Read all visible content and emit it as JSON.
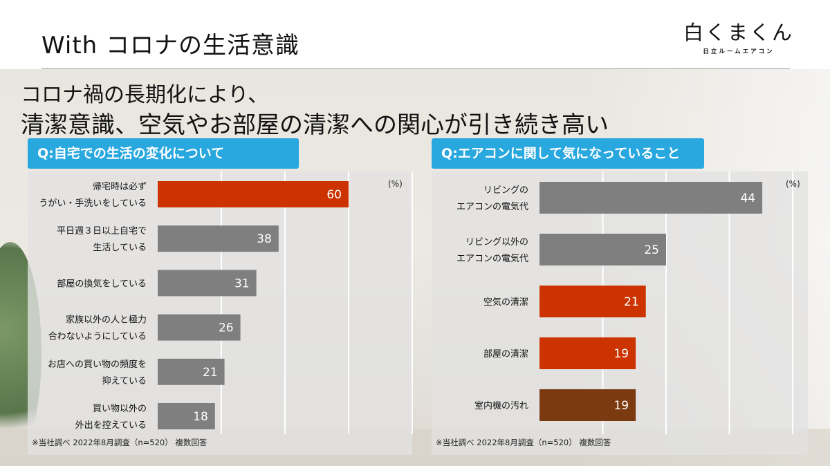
{
  "slide": {
    "title": "With コロナの生活意識",
    "brand_logo": "白くまくん",
    "brand_sub": "日立ルームエアコン",
    "headline_line1": "コロナ禍の長期化により、",
    "headline_line2": "清潔意識、空気やお部屋の清潔への関心が引き続き高い"
  },
  "colors": {
    "highlight": "#cc3300",
    "neutral": "#7f7f7f",
    "dark": "#7b3a10",
    "label_blue": "#29a8e0"
  },
  "chart_data": [
    {
      "type": "bar",
      "orientation": "horizontal",
      "title": "Q:自宅での生活の変化について",
      "unit": "(%)",
      "note": "※当社調べ 2022年8月調査（n=520） 複数回答",
      "categories": [
        [
          "帰宅時は必ず",
          "うがい・手洗いをしている"
        ],
        [
          "平日週３日以上自宅で",
          "生活している"
        ],
        [
          "部屋の換気をしている"
        ],
        [
          "家族以外の人と極力",
          "合わないようにしている"
        ],
        [
          "お店への買い物の頻度を",
          "抑えている"
        ],
        [
          "買い物以外の",
          "外出を控えている"
        ]
      ],
      "values": [
        60,
        38,
        31,
        26,
        21,
        18
      ],
      "bar_colors": [
        "#cc3300",
        "#7f7f7f",
        "#7f7f7f",
        "#7f7f7f",
        "#7f7f7f",
        "#7f7f7f"
      ],
      "xlim": [
        0,
        80
      ],
      "grid": true
    },
    {
      "type": "bar",
      "orientation": "horizontal",
      "title": "Q:エアコンに関して気になっていること",
      "unit": "(%)",
      "note": "※当社調べ 2022年8月調査（n=520） 複数回答",
      "categories": [
        [
          "リビングの",
          "エアコンの電気代"
        ],
        [
          "リビング以外の",
          "エアコンの電気代"
        ],
        [
          "空気の清潔"
        ],
        [
          "部屋の清潔"
        ],
        [
          "室内機の汚れ"
        ]
      ],
      "values": [
        44,
        25,
        21,
        19,
        19
      ],
      "bar_colors": [
        "#7f7f7f",
        "#7f7f7f",
        "#cc3300",
        "#cc3300",
        "#7b3a10"
      ],
      "xlim": [
        0,
        50
      ],
      "grid": true
    }
  ]
}
